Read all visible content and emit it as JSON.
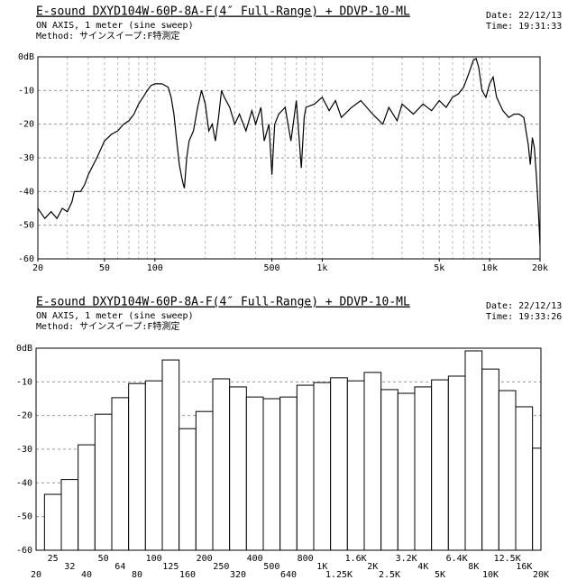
{
  "chart_data": [
    {
      "type": "line",
      "title": "E-sound DXYD104W-60P-8A-F(4″ Full-Range) + DDVP-10-ML",
      "subtitle": "ON AXIS, 1 meter (sine sweep)",
      "method": "Method: サインスイープ:F特測定",
      "date": "Date: 22/12/13",
      "time": "Time: 19:31:33",
      "xscale": "log",
      "grid": true,
      "color": "#000000",
      "xlim": [
        20,
        20000
      ],
      "xticks": [
        20,
        50,
        100,
        500,
        {
          "value": 1000,
          "label": "1k"
        },
        {
          "value": 5000,
          "label": "5k"
        },
        {
          "value": 10000,
          "label": "10k"
        },
        {
          "value": 20000,
          "label": "20k"
        }
      ],
      "ylim": [
        -60,
        0
      ],
      "yticks": [
        {
          "value": 0,
          "label": "0dB"
        },
        -10,
        -20,
        -30,
        -40,
        -50,
        -60
      ],
      "x": [
        20,
        22,
        24,
        26,
        28,
        30,
        32,
        33,
        36,
        38,
        40,
        45,
        50,
        55,
        60,
        65,
        70,
        75,
        80,
        85,
        90,
        95,
        100,
        110,
        120,
        125,
        130,
        135,
        140,
        145,
        148,
        150,
        155,
        160,
        170,
        180,
        190,
        200,
        210,
        220,
        230,
        240,
        250,
        260,
        280,
        300,
        320,
        350,
        380,
        400,
        430,
        450,
        480,
        500,
        520,
        550,
        600,
        650,
        700,
        750,
        780,
        800,
        900,
        1000,
        1100,
        1200,
        1300,
        1500,
        1700,
        2000,
        2300,
        2500,
        2800,
        3000,
        3500,
        4000,
        4500,
        5000,
        5500,
        6000,
        6500,
        7000,
        7500,
        8000,
        8300,
        8600,
        9000,
        9500,
        10000,
        10500,
        11000,
        12000,
        13000,
        14000,
        15000,
        16000,
        17000,
        17500,
        18000,
        18500,
        19000,
        19500,
        20000
      ],
      "values": [
        -45,
        -48,
        -46,
        -48,
        -45,
        -46,
        -43,
        -40,
        -40,
        -38,
        -35,
        -30,
        -25,
        -23,
        -22,
        -20,
        -19,
        -17,
        -14,
        -12,
        -10,
        -8.5,
        -8,
        -8,
        -9,
        -12,
        -17,
        -25,
        -32,
        -36,
        -38,
        -39,
        -30,
        -25,
        -22,
        -15,
        -10,
        -14,
        -22,
        -20,
        -25,
        -18,
        -10,
        -12,
        -15,
        -20,
        -17,
        -22,
        -16,
        -20,
        -15,
        -25,
        -20,
        -35,
        -20,
        -17,
        -15,
        -25,
        -13,
        -33,
        -18,
        -15,
        -14,
        -12,
        -16,
        -13,
        -18,
        -15,
        -13,
        -17,
        -20,
        -15,
        -19,
        -14,
        -17,
        -14,
        -16,
        -13,
        -15,
        -12,
        -11,
        -9,
        -5,
        -1,
        -0.5,
        -3,
        -10,
        -12,
        -8,
        -6,
        -12,
        -16,
        -18,
        -17,
        -17,
        -18,
        -26,
        -32,
        -24,
        -27,
        -35,
        -45,
        -56
      ]
    },
    {
      "type": "bar",
      "title": "E-sound DXYD104W-60P-8A-F(4″ Full-Range) + DDVP-10-ML",
      "subtitle": "ON AXIS, 1 meter (sine sweep)",
      "method": "Method: サインスイープ:F特測定",
      "date": "Date: 22/12/13",
      "time": "Time: 19:33:26",
      "grid": true,
      "color": "#ffffff",
      "ylim": [
        -60,
        0
      ],
      "yticks": [
        {
          "value": 0,
          "label": "0dB"
        },
        -10,
        -20,
        -30,
        -40,
        -50,
        -60
      ],
      "categories": [
        "20",
        "25",
        "32",
        "40",
        "50",
        "64",
        "80",
        "100",
        "125",
        "160",
        "200",
        "250",
        "320",
        "400",
        "500",
        "640",
        "800",
        "1K",
        "1.25K",
        "1.6K",
        "2K",
        "2.5K",
        "3.2K",
        "4K",
        "5K",
        "6.4K",
        "8K",
        "10K",
        "12.5K",
        "16K",
        "20K"
      ],
      "values": [
        null,
        -43.4,
        -39,
        -28.7,
        -19.6,
        -14.7,
        -10.5,
        -9.7,
        -3.5,
        -23.9,
        -18.8,
        -9.1,
        -11.5,
        -14.5,
        -15,
        -14.5,
        -11,
        -10.2,
        -8.8,
        -9.7,
        -7.2,
        -12.3,
        -13.4,
        -11.5,
        -9.4,
        -8.3,
        -0.8,
        -6.2,
        -12.6,
        -17.4,
        -29.7
      ]
    }
  ]
}
